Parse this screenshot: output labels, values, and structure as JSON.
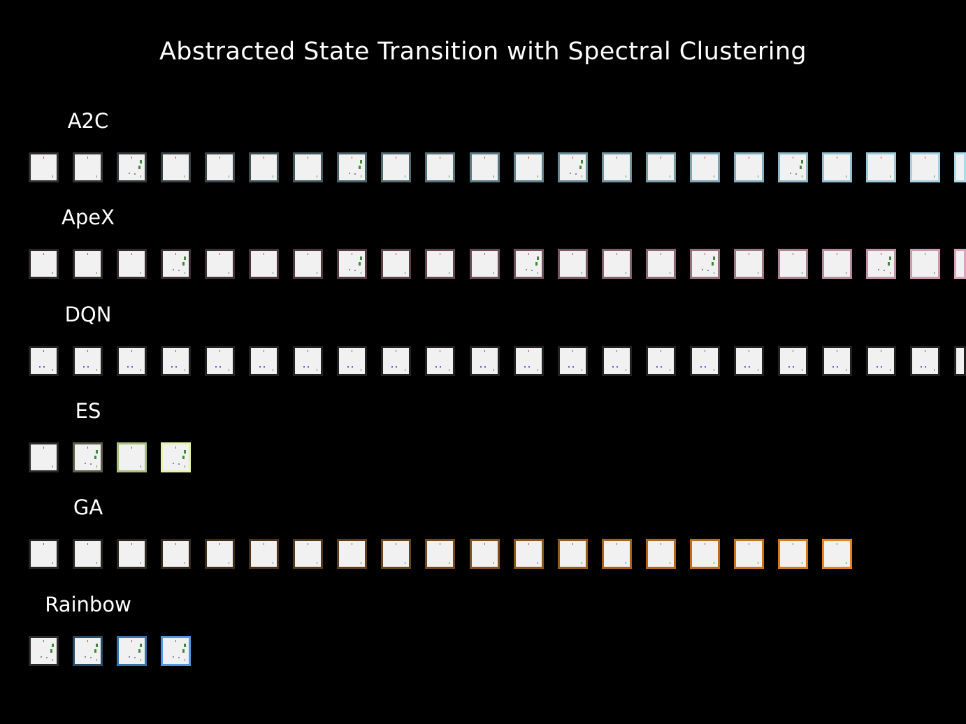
{
  "title": "Abstracted State Transition with Spectral Clustering",
  "rows": [
    {
      "label": "A2C",
      "count": 22,
      "frame_colors": [
        "#303030",
        "#333536",
        "#363a3d",
        "#394045",
        "#3c464d",
        "#405055",
        "#44585f",
        "#4a6068",
        "#506870",
        "#567078",
        "#5c7a84",
        "#62828c",
        "#688a94",
        "#6f939e",
        "#769ca8",
        "#7da5b2",
        "#85aebc",
        "#8cb6c6",
        "#94bfd0",
        "#9cc8da",
        "#a4d1e4",
        "#acd9ee"
      ],
      "rich": [
        2,
        7,
        12,
        17
      ]
    },
    {
      "label": "ApeX",
      "count": 22,
      "frame_colors": [
        "#2c2626",
        "#302829",
        "#352a2c",
        "#3a2c30",
        "#403034",
        "#463438",
        "#4c383d",
        "#523c42",
        "#584047",
        "#60464e",
        "#684c55",
        "#70525c",
        "#785864",
        "#82606c",
        "#8c6874",
        "#96707e",
        "#a07888",
        "#aa8092",
        "#b6889c",
        "#c290a6",
        "#ce98b0",
        "#dca2bc"
      ],
      "rich": [
        3,
        7,
        11,
        15,
        19
      ]
    },
    {
      "label": "DQN",
      "count": 22,
      "frame_colors": [
        "#222222",
        "#222222",
        "#222222",
        "#222222",
        "#222222",
        "#222222",
        "#222222",
        "#222222",
        "#222222",
        "#222222",
        "#222222",
        "#222222",
        "#222222",
        "#222222",
        "#222222",
        "#222222",
        "#222222",
        "#222222",
        "#222222",
        "#222222",
        "#222222",
        "#222222"
      ],
      "rich": []
    },
    {
      "label": "ES",
      "count": 4,
      "frame_colors": [
        "#2a2a2a",
        "#5a5e4a",
        "#a8c07a",
        "#e6f4a4"
      ],
      "rich": [
        1,
        3
      ]
    },
    {
      "label": "GA",
      "count": 19,
      "frame_colors": [
        "#242424",
        "#28241f",
        "#2e271e",
        "#36291c",
        "#3e2d1c",
        "#48321c",
        "#52381c",
        "#5c3e1c",
        "#66441c",
        "#72491c",
        "#7e501c",
        "#8a561c",
        "#965c1c",
        "#a2621c",
        "#ae681c",
        "#ba6e1c",
        "#c6741c",
        "#d27a1c",
        "#e28220"
      ],
      "rich": []
    },
    {
      "label": "Rainbow",
      "count": 4,
      "frame_colors": [
        "#2a2a2a",
        "#2a4a66",
        "#3674b0",
        "#4a98e6"
      ],
      "rich": [
        0,
        1,
        2,
        3
      ]
    }
  ]
}
